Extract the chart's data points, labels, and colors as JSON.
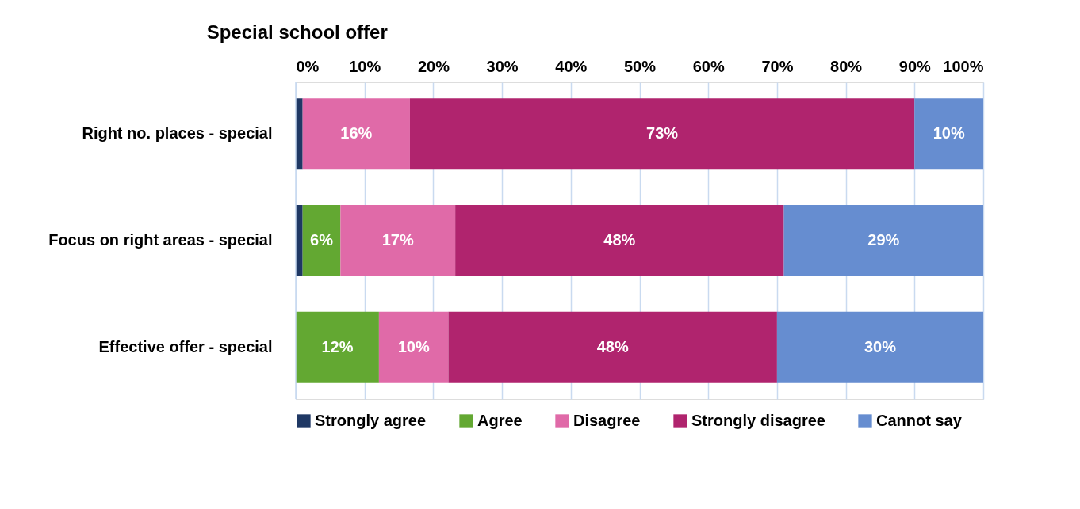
{
  "chart_data": {
    "type": "bar",
    "orientation": "horizontal",
    "stacked": true,
    "title": "Special school offer",
    "categories": [
      "Right no. places - special",
      "Focus on right areas - special",
      "Effective offer - special"
    ],
    "series": [
      {
        "name": "Strongly agree",
        "color": "#1f3864",
        "values": [
          1,
          1,
          0
        ],
        "value_labels": [
          null,
          null,
          null
        ]
      },
      {
        "name": "Agree",
        "color": "#63a832",
        "values": [
          0,
          5.5,
          12.1
        ],
        "value_labels": [
          null,
          "6%",
          "12%"
        ]
      },
      {
        "name": "Disagree",
        "color": "#e06aa8",
        "values": [
          15.6,
          16.7,
          10.1
        ],
        "value_labels": [
          "16%",
          "17%",
          "10%"
        ]
      },
      {
        "name": "Strongly disagree",
        "color": "#b0246e",
        "values": [
          73.4,
          47.8,
          47.8
        ],
        "value_labels": [
          "73%",
          "48%",
          "48%"
        ]
      },
      {
        "name": "Cannot say",
        "color": "#668dd0",
        "values": [
          10,
          29,
          30
        ],
        "value_labels": [
          "10%",
          "29%",
          "30%"
        ]
      }
    ],
    "xlim": [
      0,
      100
    ],
    "xticks": [
      {
        "value": 0,
        "label": "0%"
      },
      {
        "value": 10,
        "label": "10%"
      },
      {
        "value": 20,
        "label": "20%"
      },
      {
        "value": 30,
        "label": "30%"
      },
      {
        "value": 40,
        "label": "40%"
      },
      {
        "value": 50,
        "label": "50%"
      },
      {
        "value": 60,
        "label": "60%"
      },
      {
        "value": 70,
        "label": "70%"
      },
      {
        "value": 80,
        "label": "80%"
      },
      {
        "value": 90,
        "label": "90%"
      },
      {
        "value": 100,
        "label": "100%"
      }
    ],
    "grid": "x",
    "legend": "bottom"
  }
}
